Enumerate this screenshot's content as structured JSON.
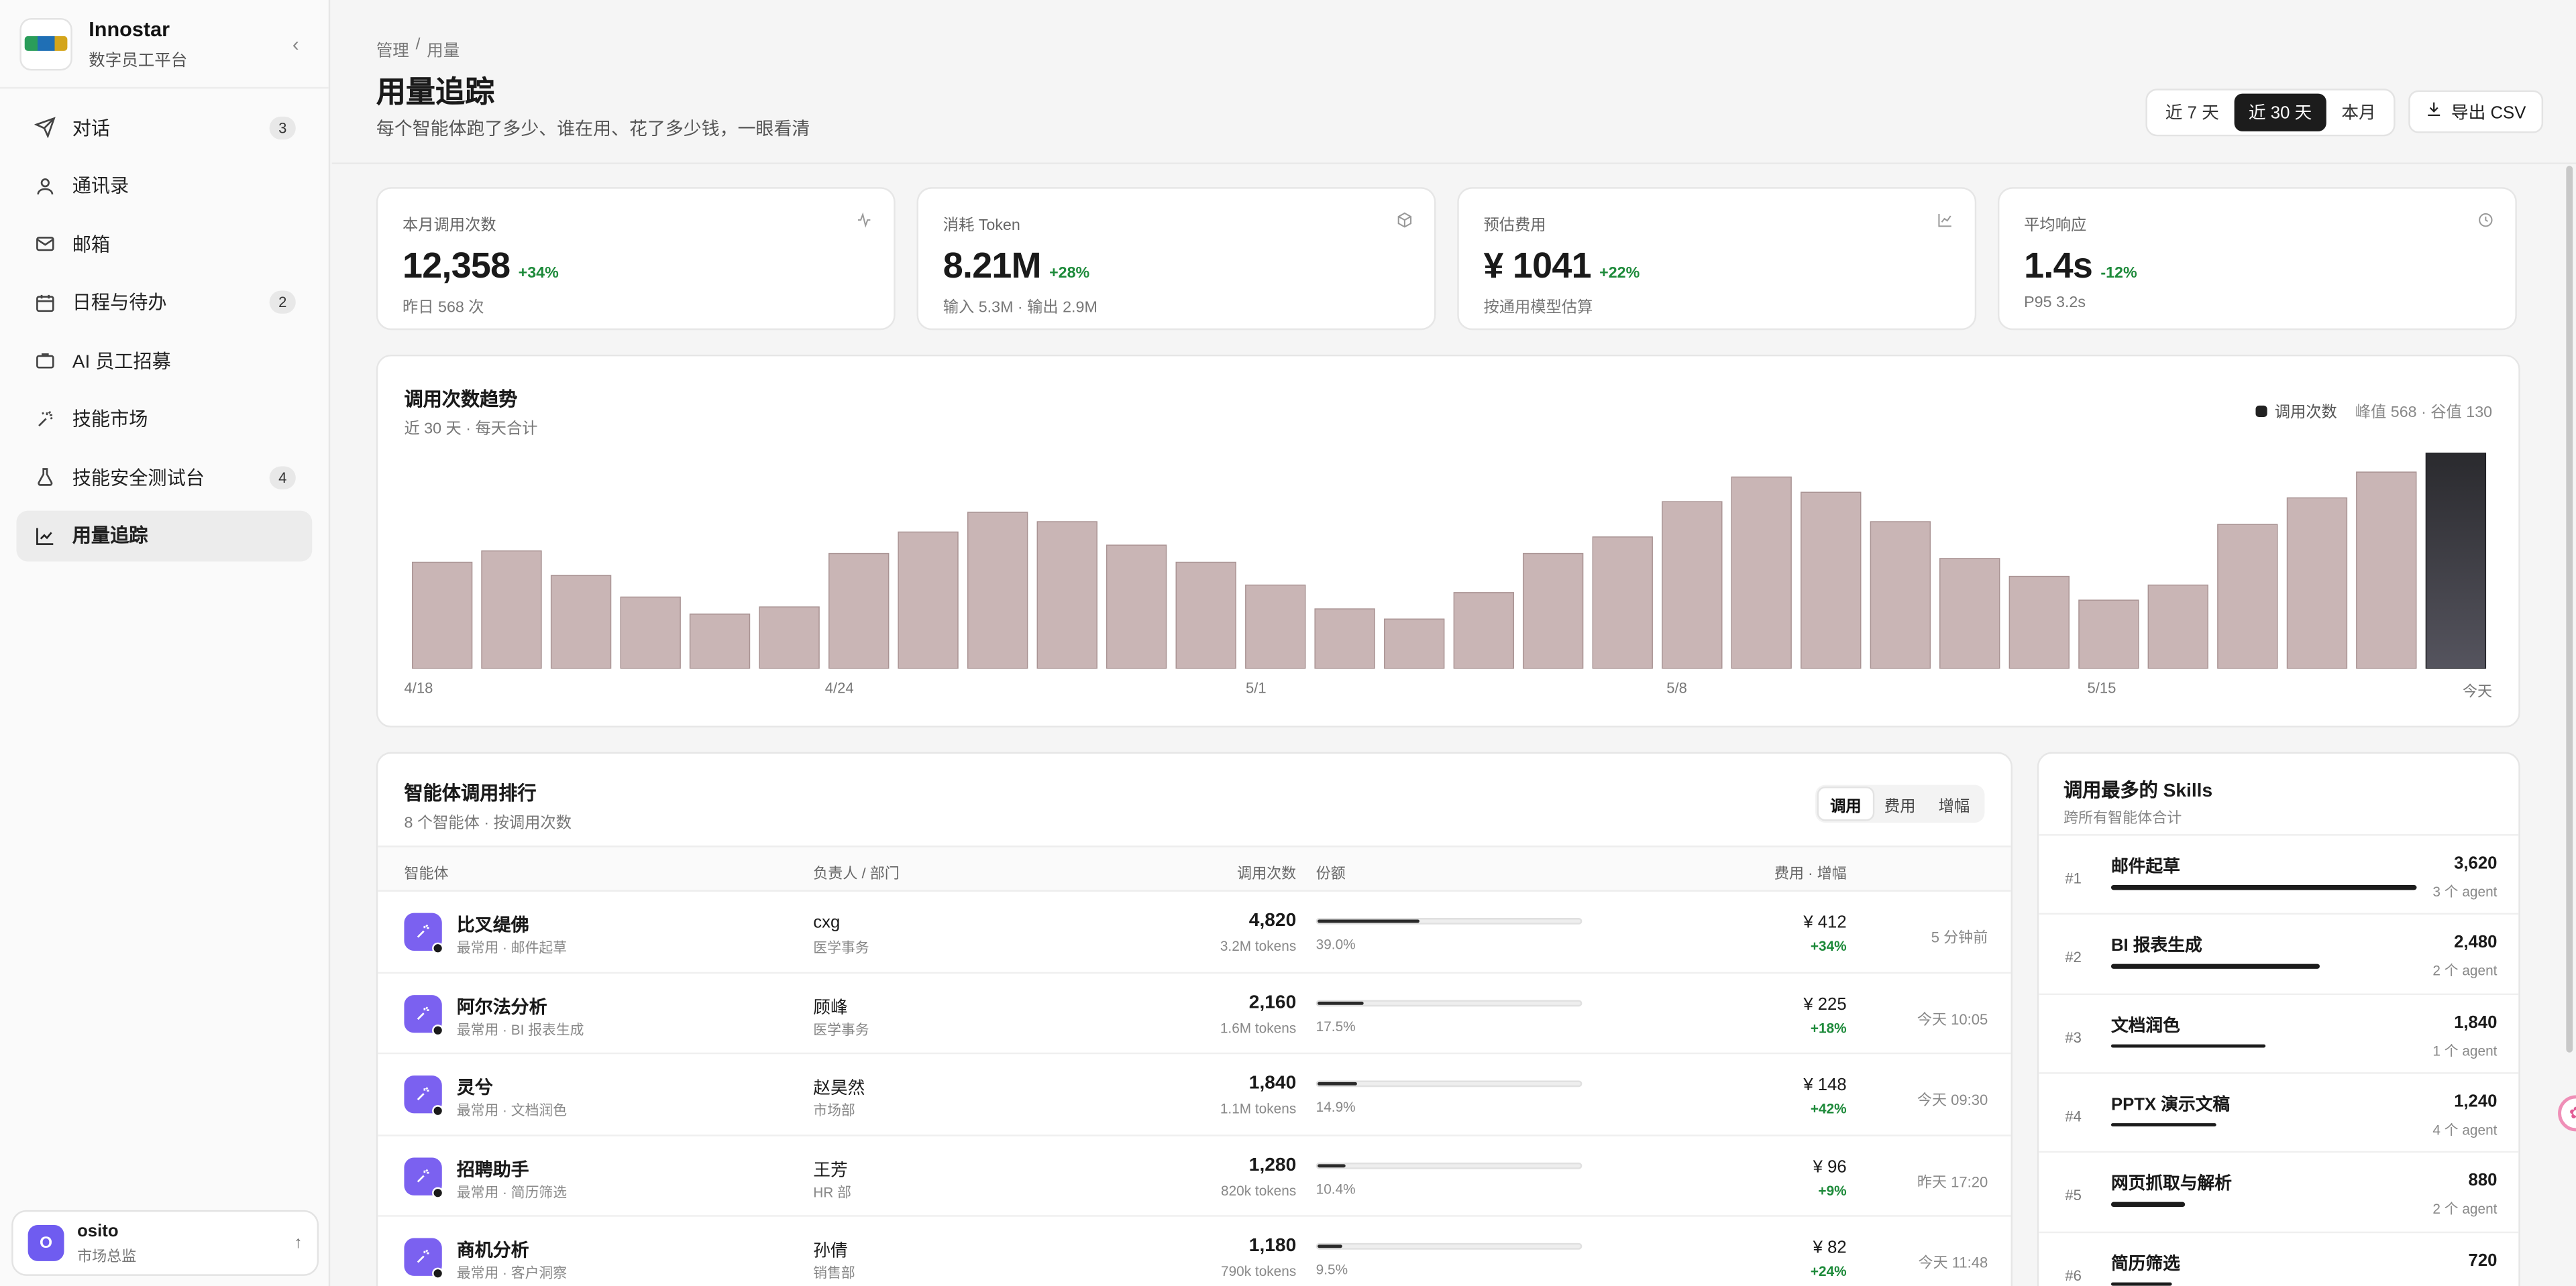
{
  "brand": {
    "name": "Innostar",
    "subtitle": "数字员工平台",
    "collapse_icon": "chevron-left-icon"
  },
  "nav": [
    {
      "label": "对话",
      "icon": "send-icon",
      "badge": "3",
      "active": false
    },
    {
      "label": "通讯录",
      "icon": "user-icon",
      "badge": "",
      "active": false
    },
    {
      "label": "邮箱",
      "icon": "mail-icon",
      "badge": "",
      "active": false
    },
    {
      "label": "日程与待办",
      "icon": "calendar-icon",
      "badge": "2",
      "active": false
    },
    {
      "label": "AI 员工招募",
      "icon": "briefcase-icon",
      "badge": "",
      "active": false
    },
    {
      "label": "技能市场",
      "icon": "sparkle-icon",
      "badge": "",
      "active": false
    },
    {
      "label": "技能安全测试台",
      "icon": "flask-icon",
      "badge": "4",
      "active": false
    },
    {
      "label": "用量追踪",
      "icon": "chart-icon",
      "badge": "",
      "active": true
    }
  ],
  "user": {
    "initial": "O",
    "name": "osito",
    "role": "市场总监"
  },
  "header": {
    "breadcrumb": [
      "管理",
      "/",
      "用量"
    ],
    "title": "用量追踪",
    "subtitle": "每个智能体跑了多少、谁在用、花了多少钱，一眼看清",
    "ranges": [
      {
        "label": "近 7 天",
        "active": false
      },
      {
        "label": "近 30 天",
        "active": true
      },
      {
        "label": "本月",
        "active": false
      }
    ],
    "export_label": "导出 CSV"
  },
  "kpis": [
    {
      "label": "本月调用次数",
      "value": "12,358",
      "delta": "+34%",
      "note": "昨日 568 次",
      "icon": "pulse-icon"
    },
    {
      "label": "消耗 Token",
      "value": "8.21M",
      "delta": "+28%",
      "note": "输入 5.3M · 输出 2.9M",
      "icon": "cube-icon"
    },
    {
      "label": "预估费用",
      "value": "¥ 1041",
      "delta": "+22%",
      "note": "按通用模型估算",
      "icon": "line-chart-icon"
    },
    {
      "label": "平均响应",
      "value": "1.4s",
      "delta": "-12%",
      "note": "P95 3.2s",
      "icon": "clock-icon"
    }
  ],
  "trend": {
    "title": "调用次数趋势",
    "subtitle": "近 30 天 · 每天合计",
    "legend": "调用次数",
    "legend_extra": "峰值 568 · 谷值 130"
  },
  "chart_data": {
    "type": "bar",
    "title": "调用次数趋势",
    "categories": [
      "4/18",
      "4/19",
      "4/20",
      "4/21",
      "4/22",
      "4/23",
      "4/24",
      "4/25",
      "4/26",
      "4/27",
      "4/28",
      "4/29",
      "4/30",
      "5/1",
      "5/2",
      "5/3",
      "5/4",
      "5/5",
      "5/6",
      "5/7",
      "5/8",
      "5/9",
      "5/10",
      "5/11",
      "5/12",
      "5/13",
      "5/14",
      "5/15",
      "5/16",
      "今天"
    ],
    "x_tick_labels": [
      "4/18",
      "4/24",
      "5/1",
      "5/8",
      "5/15",
      "今天"
    ],
    "values": [
      280,
      310,
      245,
      188,
      143,
      162,
      303,
      360,
      412,
      387,
      325,
      280,
      220,
      157,
      130,
      200,
      303,
      347,
      440,
      505,
      465,
      387,
      290,
      243,
      180,
      220,
      380,
      450,
      518,
      568
    ],
    "ylim": [
      0,
      568
    ],
    "grid": false,
    "legend": "top-right",
    "bar_color": "#c9b5b5",
    "highlight_color": "#2a2a2e"
  },
  "ranking": {
    "title": "智能体调用排行",
    "subtitle": "8 个智能体 · 按调用次数",
    "tabs": [
      {
        "label": "调用",
        "active": true
      },
      {
        "label": "费用",
        "active": false
      },
      {
        "label": "增幅",
        "active": false
      }
    ],
    "columns": {
      "agent": "智能体",
      "owner": "负责人 / 部门",
      "calls": "调用次数",
      "share": "份额",
      "cost": "费用 · 增幅"
    },
    "rows": [
      {
        "name": "比叉缇佛",
        "sub": "最常用 · 邮件起草",
        "owner": "cxg",
        "dept": "医学事务",
        "calls": "4,820",
        "tokens": "3.2M tokens",
        "share": 0.39,
        "share_label": "39.0%",
        "cost": "¥ 412",
        "growth": "+34%",
        "last": "5 分钟前"
      },
      {
        "name": "阿尔法分析",
        "sub": "最常用 · BI 报表生成",
        "owner": "顾峰",
        "dept": "医学事务",
        "calls": "2,160",
        "tokens": "1.6M tokens",
        "share": 0.175,
        "share_label": "17.5%",
        "cost": "¥ 225",
        "growth": "+18%",
        "last": "今天 10:05"
      },
      {
        "name": "灵兮",
        "sub": "最常用 · 文档润色",
        "owner": "赵昊然",
        "dept": "市场部",
        "calls": "1,840",
        "tokens": "1.1M tokens",
        "share": 0.149,
        "share_label": "14.9%",
        "cost": "¥ 148",
        "growth": "+42%",
        "last": "今天 09:30"
      },
      {
        "name": "招聘助手",
        "sub": "最常用 · 简历筛选",
        "owner": "王芳",
        "dept": "HR 部",
        "calls": "1,280",
        "tokens": "820k tokens",
        "share": 0.104,
        "share_label": "10.4%",
        "cost": "¥ 96",
        "growth": "+9%",
        "last": "昨天 17:20"
      },
      {
        "name": "商机分析",
        "sub": "最常用 · 客户洞察",
        "owner": "孙倩",
        "dept": "销售部",
        "calls": "1,180",
        "tokens": "790k tokens",
        "share": 0.095,
        "share_label": "9.5%",
        "cost": "¥ 82",
        "growth": "+24%",
        "last": "今天 11:48"
      }
    ]
  },
  "skills": {
    "title": "调用最多的 Skills",
    "subtitle": "跨所有智能体合计",
    "items": [
      {
        "rank": "#1",
        "name": "邮件起草",
        "value": "3,620",
        "agents": "3 个 agent",
        "ratio": 1.0
      },
      {
        "rank": "#2",
        "name": "BI 报表生成",
        "value": "2,480",
        "agents": "2 个 agent",
        "ratio": 0.685
      },
      {
        "rank": "#3",
        "name": "文档润色",
        "value": "1,840",
        "agents": "1 个 agent",
        "ratio": 0.508
      },
      {
        "rank": "#4",
        "name": "PPTX 演示文稿",
        "value": "1,240",
        "agents": "4 个 agent",
        "ratio": 0.343
      },
      {
        "rank": "#5",
        "name": "网页抓取与解析",
        "value": "880",
        "agents": "2 个 agent",
        "ratio": 0.243
      },
      {
        "rank": "#6",
        "name": "简历筛选",
        "value": "720",
        "agents": "",
        "ratio": 0.2
      }
    ]
  }
}
